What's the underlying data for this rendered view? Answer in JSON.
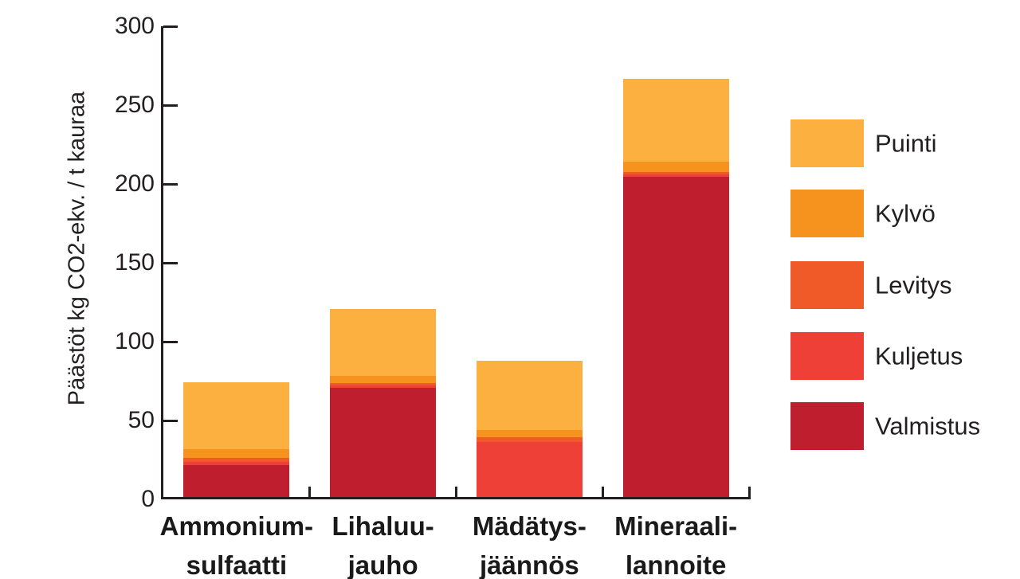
{
  "figure": {
    "background_color": "#FFFFFF",
    "text_color": "#231F20",
    "axis_color": "#231F20"
  },
  "chart_data": {
    "type": "bar",
    "stacked": true,
    "title": "",
    "xlabel": "",
    "ylabel": "Päästöt kg CO2-ekv. / t kauraa",
    "ylim": [
      0,
      300
    ],
    "yticks": [
      0,
      50,
      100,
      150,
      200,
      250,
      300
    ],
    "grid": false,
    "legend_position": "right",
    "categories": [
      "Ammonium-sulfaatti",
      "Lihaluu-jauho",
      "Mädätys-jäännös",
      "Mineraali-lannoite"
    ],
    "category_label_lines": [
      [
        "Ammonium-",
        "sulfaatti"
      ],
      [
        "Lihaluu-",
        "jauho"
      ],
      [
        "Mädätys-",
        "jäännös"
      ],
      [
        "Mineraali-",
        "lannoite"
      ]
    ],
    "stack_order_bottom_to_top": [
      "Valmistus",
      "Kuljetus",
      "Levitys",
      "Kylvö",
      "Puinti"
    ],
    "series": [
      {
        "name": "Puinti",
        "color": "#FBB040",
        "values": [
          42,
          42,
          44,
          52.5
        ]
      },
      {
        "name": "Kylvö",
        "color": "#F6921E",
        "values": [
          6,
          5,
          4.5,
          6.5
        ]
      },
      {
        "name": "Levitys",
        "color": "#F05A28",
        "values": [
          2.5,
          1.5,
          3,
          1.5
        ]
      },
      {
        "name": "Kuljetus",
        "color": "#EF4038",
        "values": [
          2,
          1.5,
          35,
          1.5
        ]
      },
      {
        "name": "Valmistus",
        "color": "#BE1E2D",
        "values": [
          20,
          69,
          0,
          203
        ]
      }
    ],
    "totals": [
      72.5,
      119,
      86.5,
      265
    ]
  }
}
